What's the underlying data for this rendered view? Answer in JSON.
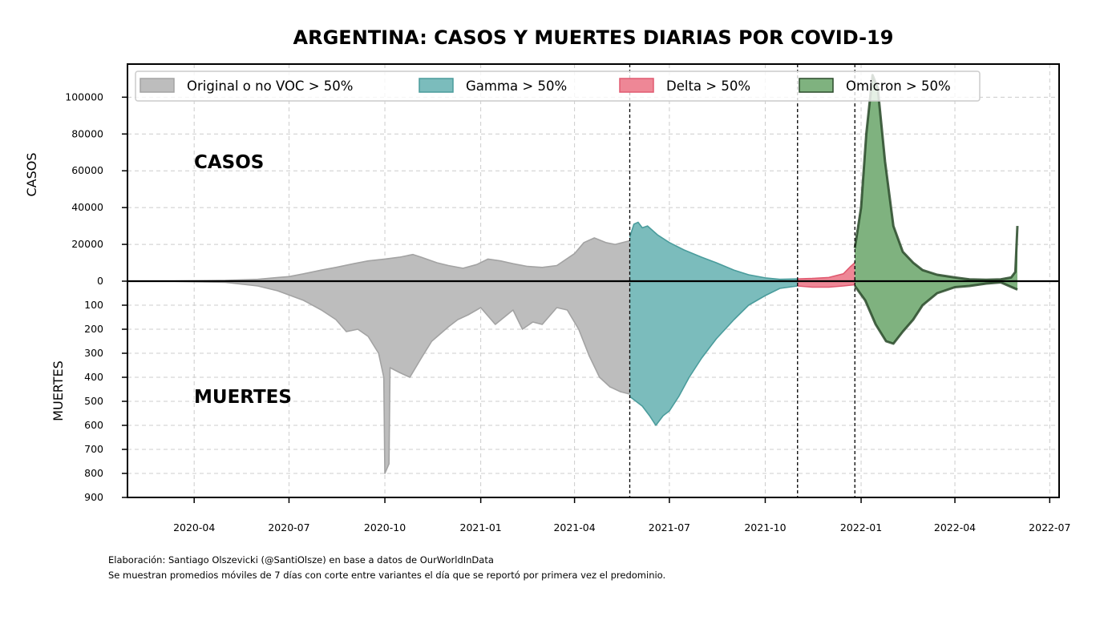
{
  "chart_data": {
    "type": "area",
    "title": "ARGENTINA: CASOS Y MUERTES DIARIAS POR COVID-19",
    "xlabel": "",
    "ylabel_top": "CASOS",
    "ylabel_bottom": "MUERTES",
    "annotations": {
      "top": "CASOS",
      "bottom": "MUERTES"
    },
    "x_ticks": [
      "2020-04",
      "2020-07",
      "2020-10",
      "2021-01",
      "2021-04",
      "2021-07",
      "2021-10",
      "2022-01",
      "2022-04",
      "2022-07"
    ],
    "xlim": [
      "2020-01-28",
      "2022-07-10"
    ],
    "cases_axis": {
      "ylim": [
        0,
        118000
      ],
      "ticks": [
        0,
        20000,
        40000,
        60000,
        80000,
        100000
      ]
    },
    "deaths_axis": {
      "ylim": [
        0,
        900
      ],
      "ticks": [
        100,
        200,
        300,
        400,
        500,
        600,
        700,
        800,
        900
      ]
    },
    "grid": true,
    "legend_position": "top-left",
    "variant_boundaries": [
      "2021-05-24",
      "2021-11-01",
      "2021-12-26"
    ],
    "series": [
      {
        "name": "Original o no VOC > 50%",
        "fill": "#bdbdbd",
        "edge": "#a3a3a3",
        "cases": [
          [
            "2020-03-03",
            50
          ],
          [
            "2020-04-01",
            200
          ],
          [
            "2020-05-01",
            400
          ],
          [
            "2020-06-01",
            1000
          ],
          [
            "2020-06-20",
            2000
          ],
          [
            "2020-07-01",
            2500
          ],
          [
            "2020-07-15",
            4000
          ],
          [
            "2020-08-01",
            6000
          ],
          [
            "2020-08-15",
            7500
          ],
          [
            "2020-09-01",
            9500
          ],
          [
            "2020-09-15",
            11000
          ],
          [
            "2020-10-01",
            12000
          ],
          [
            "2020-10-15",
            13000
          ],
          [
            "2020-10-28",
            14500
          ],
          [
            "2020-11-05",
            13000
          ],
          [
            "2020-11-20",
            10000
          ],
          [
            "2020-12-01",
            8500
          ],
          [
            "2020-12-15",
            7000
          ],
          [
            "2020-12-28",
            9000
          ],
          [
            "2021-01-08",
            12000
          ],
          [
            "2021-01-20",
            11000
          ],
          [
            "2021-02-01",
            9500
          ],
          [
            "2021-02-15",
            8000
          ],
          [
            "2021-03-01",
            7500
          ],
          [
            "2021-03-15",
            8500
          ],
          [
            "2021-04-01",
            15000
          ],
          [
            "2021-04-10",
            21000
          ],
          [
            "2021-04-20",
            23500
          ],
          [
            "2021-05-01",
            21000
          ],
          [
            "2021-05-10",
            20000
          ],
          [
            "2021-05-24",
            22000
          ]
        ],
        "deaths": [
          [
            "2020-03-03",
            0
          ],
          [
            "2020-05-01",
            5
          ],
          [
            "2020-06-01",
            20
          ],
          [
            "2020-06-20",
            40
          ],
          [
            "2020-07-15",
            80
          ],
          [
            "2020-08-01",
            120
          ],
          [
            "2020-08-15",
            160
          ],
          [
            "2020-08-25",
            210
          ],
          [
            "2020-09-05",
            200
          ],
          [
            "2020-09-15",
            230
          ],
          [
            "2020-09-25",
            300
          ],
          [
            "2020-09-30",
            400
          ],
          [
            "2020-10-01",
            800
          ],
          [
            "2020-10-05",
            760
          ],
          [
            "2020-10-06",
            360
          ],
          [
            "2020-10-15",
            380
          ],
          [
            "2020-10-25",
            400
          ],
          [
            "2020-11-05",
            320
          ],
          [
            "2020-11-15",
            250
          ],
          [
            "2020-12-01",
            190
          ],
          [
            "2020-12-10",
            160
          ],
          [
            "2020-12-20",
            140
          ],
          [
            "2021-01-01",
            110
          ],
          [
            "2021-01-15",
            180
          ],
          [
            "2021-02-01",
            120
          ],
          [
            "2021-02-10",
            200
          ],
          [
            "2021-02-20",
            170
          ],
          [
            "2021-03-01",
            180
          ],
          [
            "2021-03-15",
            110
          ],
          [
            "2021-03-25",
            120
          ],
          [
            "2021-04-05",
            200
          ],
          [
            "2021-04-15",
            310
          ],
          [
            "2021-04-25",
            400
          ],
          [
            "2021-05-05",
            440
          ],
          [
            "2021-05-15",
            460
          ],
          [
            "2021-05-24",
            470
          ]
        ]
      },
      {
        "name": "Gamma > 50%",
        "fill": "#7bbcbc",
        "edge": "#4a9c9c",
        "cases": [
          [
            "2021-05-24",
            24000
          ],
          [
            "2021-05-28",
            31000
          ],
          [
            "2021-06-01",
            32000
          ],
          [
            "2021-06-05",
            29000
          ],
          [
            "2021-06-10",
            30000
          ],
          [
            "2021-06-20",
            25000
          ],
          [
            "2021-07-01",
            21000
          ],
          [
            "2021-07-15",
            17000
          ],
          [
            "2021-08-01",
            13000
          ],
          [
            "2021-08-15",
            10000
          ],
          [
            "2021-09-01",
            6000
          ],
          [
            "2021-09-15",
            3500
          ],
          [
            "2021-10-01",
            1800
          ],
          [
            "2021-10-15",
            1000
          ],
          [
            "2021-11-01",
            1200
          ]
        ],
        "deaths": [
          [
            "2021-05-24",
            480
          ],
          [
            "2021-05-30",
            500
          ],
          [
            "2021-06-05",
            520
          ],
          [
            "2021-06-12",
            560
          ],
          [
            "2021-06-18",
            600
          ],
          [
            "2021-06-25",
            560
          ],
          [
            "2021-07-01",
            540
          ],
          [
            "2021-07-10",
            480
          ],
          [
            "2021-07-20",
            400
          ],
          [
            "2021-08-01",
            320
          ],
          [
            "2021-08-15",
            240
          ],
          [
            "2021-09-01",
            160
          ],
          [
            "2021-09-15",
            100
          ],
          [
            "2021-10-01",
            60
          ],
          [
            "2021-10-15",
            30
          ],
          [
            "2021-11-01",
            20
          ]
        ]
      },
      {
        "name": "Delta > 50%",
        "fill": "#ee8796",
        "edge": "#e05a70",
        "cases": [
          [
            "2021-11-01",
            1200
          ],
          [
            "2021-11-15",
            1500
          ],
          [
            "2021-12-01",
            2000
          ],
          [
            "2021-12-15",
            4000
          ],
          [
            "2021-12-22",
            8000
          ],
          [
            "2021-12-26",
            10000
          ]
        ],
        "deaths": [
          [
            "2021-11-01",
            20
          ],
          [
            "2021-11-15",
            25
          ],
          [
            "2021-12-01",
            25
          ],
          [
            "2021-12-15",
            20
          ],
          [
            "2021-12-26",
            15
          ]
        ]
      },
      {
        "name": "Omicron > 50%",
        "fill": "#7fb27f",
        "edge": "#2a4a2a",
        "cases": [
          [
            "2021-12-26",
            18000
          ],
          [
            "2022-01-01",
            40000
          ],
          [
            "2022-01-06",
            80000
          ],
          [
            "2022-01-12",
            112000
          ],
          [
            "2022-01-17",
            105000
          ],
          [
            "2022-01-24",
            65000
          ],
          [
            "2022-02-01",
            30000
          ],
          [
            "2022-02-10",
            16000
          ],
          [
            "2022-02-20",
            10000
          ],
          [
            "2022-03-01",
            6000
          ],
          [
            "2022-03-15",
            3500
          ],
          [
            "2022-04-01",
            2000
          ],
          [
            "2022-04-15",
            1000
          ],
          [
            "2022-05-01",
            800
          ],
          [
            "2022-05-15",
            1000
          ],
          [
            "2022-05-25",
            2000
          ],
          [
            "2022-05-29",
            5000
          ],
          [
            "2022-05-31",
            30000
          ]
        ],
        "deaths": [
          [
            "2021-12-26",
            20
          ],
          [
            "2022-01-05",
            80
          ],
          [
            "2022-01-15",
            180
          ],
          [
            "2022-01-25",
            250
          ],
          [
            "2022-02-01",
            260
          ],
          [
            "2022-02-10",
            210
          ],
          [
            "2022-02-20",
            160
          ],
          [
            "2022-03-01",
            100
          ],
          [
            "2022-03-15",
            50
          ],
          [
            "2022-04-01",
            25
          ],
          [
            "2022-04-15",
            20
          ],
          [
            "2022-05-01",
            10
          ],
          [
            "2022-05-15",
            5
          ],
          [
            "2022-05-31",
            35
          ]
        ]
      }
    ]
  },
  "footnotes": [
    "Elaboración: Santiago Olszevicki (@SantiOlsze) en base a datos de OurWorldInData",
    "Se muestran promedios móviles de 7 días con corte entre variantes el día que se reportó por primera vez el predominio."
  ]
}
